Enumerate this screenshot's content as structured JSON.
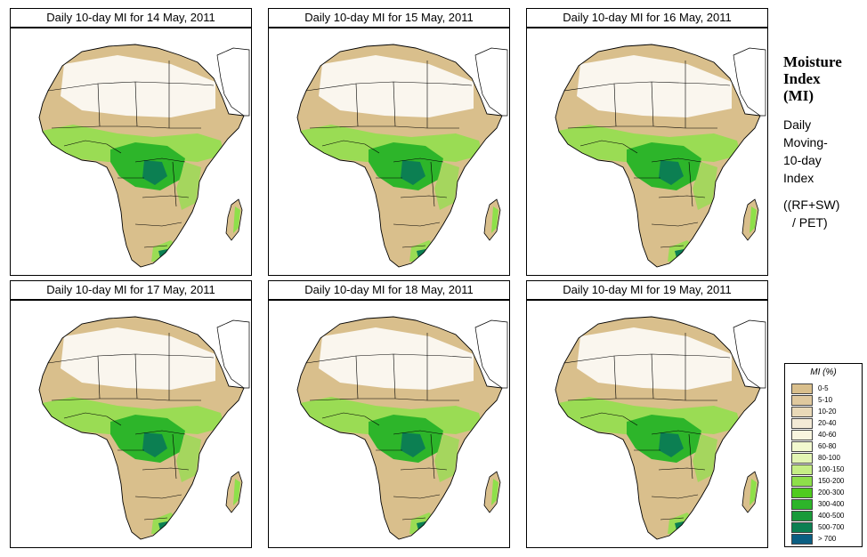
{
  "panels": [
    {
      "title": "Daily 10-day MI for 14 May, 2011"
    },
    {
      "title": "Daily 10-day MI for 15 May, 2011"
    },
    {
      "title": "Daily 10-day MI for 16 May, 2011"
    },
    {
      "title": "Daily 10-day MI for 17 May, 2011"
    },
    {
      "title": "Daily 10-day MI for 18 May, 2011"
    },
    {
      "title": "Daily 10-day MI for 19 May, 2011"
    }
  ],
  "side": {
    "title_line1": "Moisture",
    "title_line2": "Index",
    "title_line3": "(MI)",
    "desc_line1": "Daily",
    "desc_line2": "Moving-",
    "desc_line3": "10-day",
    "desc_line4": "Index",
    "formula_line1": "((RF+SW)",
    "formula_line2": "/ PET)"
  },
  "legend": {
    "title": "MI (%)",
    "items": [
      {
        "label": "0-5",
        "color": "#d9bf8c"
      },
      {
        "label": "5-10",
        "color": "#e0c99e"
      },
      {
        "label": "10-20",
        "color": "#e9d9b8"
      },
      {
        "label": "20-40",
        "color": "#f3ead6"
      },
      {
        "label": "40-60",
        "color": "#f9f5de"
      },
      {
        "label": "60-80",
        "color": "#f2f9cf"
      },
      {
        "label": "80-100",
        "color": "#e3f5b3"
      },
      {
        "label": "100-150",
        "color": "#c6ee85"
      },
      {
        "label": "150-200",
        "color": "#8ee04a"
      },
      {
        "label": "200-300",
        "color": "#4fcb1e"
      },
      {
        "label": "300-400",
        "color": "#2db52a"
      },
      {
        "label": "400-500",
        "color": "#199a3a"
      },
      {
        "label": "500-700",
        "color": "#0c7f52"
      },
      {
        "label": "> 700",
        "color": "#0a5e82"
      }
    ]
  },
  "colors": {
    "desert": "#ffffff",
    "dry": "#d9bf8c",
    "moderate": "#8ee04a",
    "wet": "#2db52a",
    "very_wet": "#0c7f52",
    "border": "#000000"
  }
}
